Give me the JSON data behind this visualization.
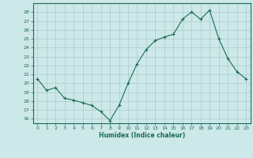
{
  "xlabel": "Humidex (Indice chaleur)",
  "ylabel": "",
  "x": [
    0,
    1,
    2,
    3,
    4,
    5,
    6,
    7,
    8,
    9,
    10,
    11,
    12,
    13,
    14,
    15,
    16,
    17,
    18,
    19,
    20,
    21,
    22,
    23
  ],
  "y": [
    20.5,
    19.2,
    19.5,
    18.3,
    18.1,
    17.8,
    17.5,
    16.8,
    15.8,
    17.5,
    20.0,
    22.2,
    23.8,
    24.8,
    25.2,
    25.5,
    27.2,
    28.0,
    27.2,
    28.2,
    25.0,
    22.8,
    21.3,
    20.5
  ],
  "line_color": "#1a6b5a",
  "marker": "+",
  "bg_color": "#cce8e8",
  "grid_color": "#aacccc",
  "tick_color": "#1a6b5a",
  "label_color": "#1a6b5a",
  "ylim": [
    15.5,
    29.0
  ],
  "xlim": [
    -0.5,
    23.5
  ],
  "yticks": [
    16,
    17,
    18,
    19,
    20,
    21,
    22,
    23,
    24,
    25,
    26,
    27,
    28
  ],
  "xticks": [
    0,
    1,
    2,
    3,
    4,
    5,
    6,
    7,
    8,
    9,
    10,
    11,
    12,
    13,
    14,
    15,
    16,
    17,
    18,
    19,
    20,
    21,
    22,
    23
  ]
}
